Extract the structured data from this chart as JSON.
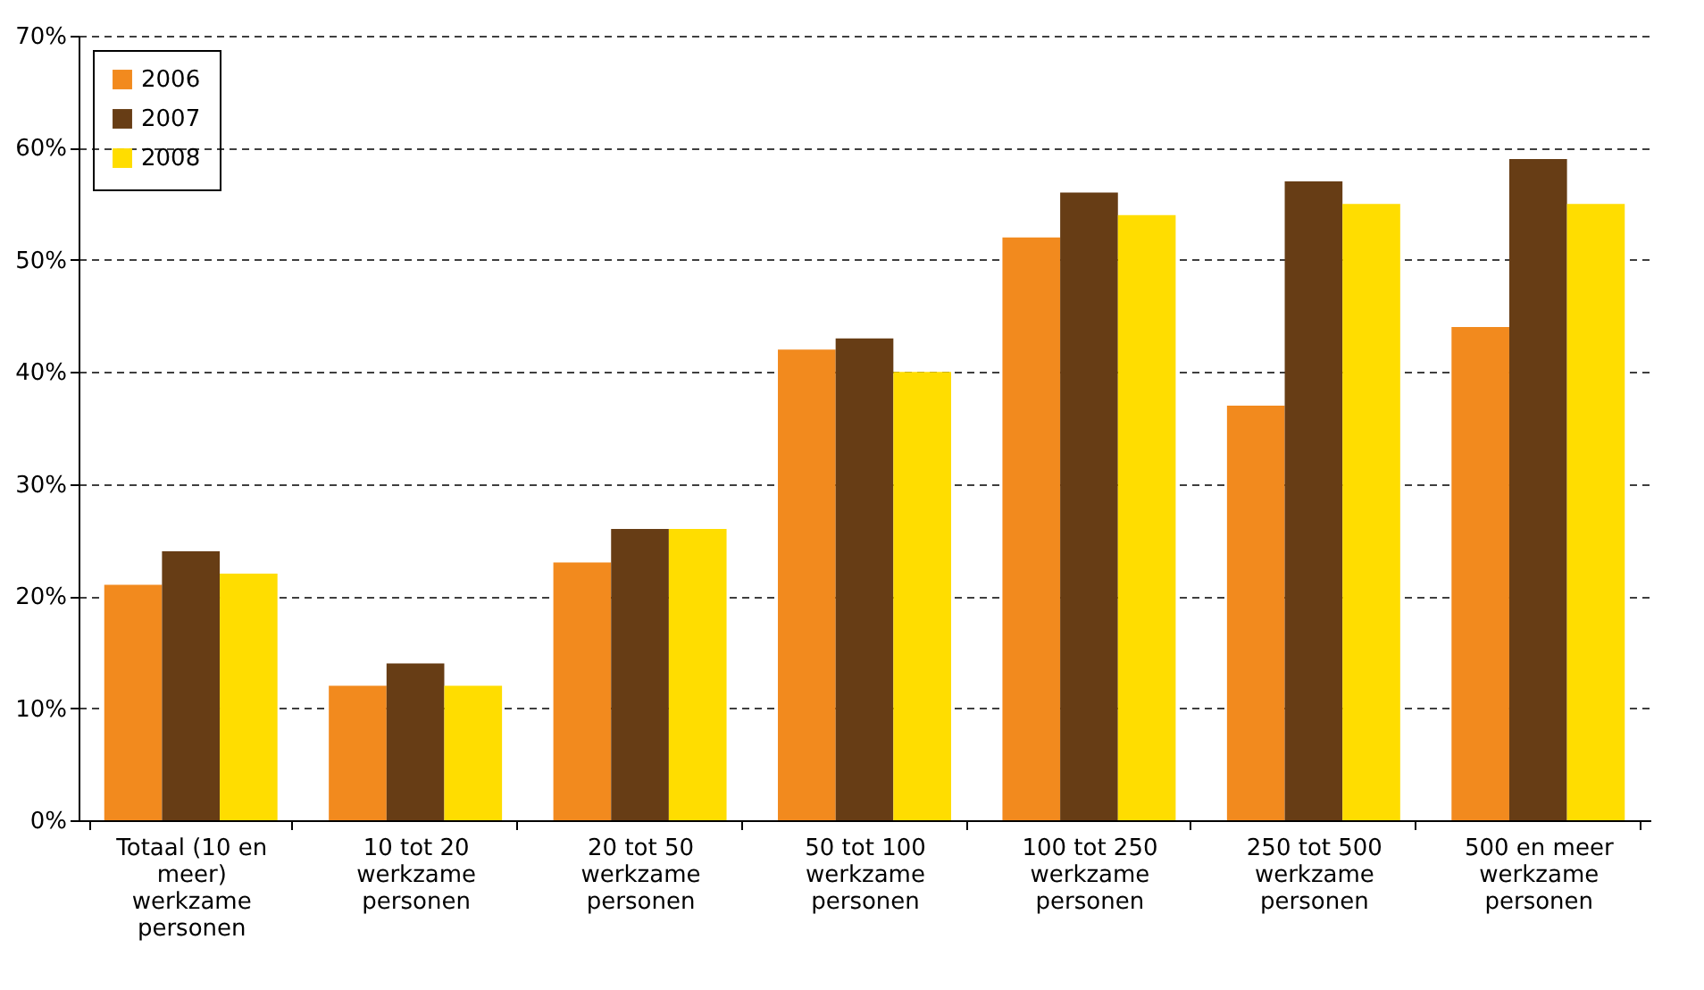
{
  "chart_data": {
    "type": "bar",
    "categories": [
      "Totaal (10 en meer) werkzame personen",
      "10 tot 20 werkzame personen",
      "20 tot 50 werkzame personen",
      "50 tot 100 werkzame personen",
      "100 tot 250 werkzame personen",
      "250 tot 500 werkzame personen",
      "500 en meer werkzame personen"
    ],
    "series": [
      {
        "name": "2006",
        "color": "#f28a1e",
        "values": [
          21,
          12,
          23,
          42,
          52,
          37,
          44
        ]
      },
      {
        "name": "2007",
        "color": "#673d15",
        "values": [
          24,
          14,
          26,
          43,
          56,
          57,
          59
        ]
      },
      {
        "name": "2008",
        "color": "#ffdd00",
        "values": [
          22,
          12,
          26,
          40,
          54,
          55,
          55
        ]
      }
    ],
    "ylim": [
      0,
      70
    ],
    "yticks": [
      {
        "value": 0,
        "label": "0%"
      },
      {
        "value": 10,
        "label": "10%"
      },
      {
        "value": 20,
        "label": "20%"
      },
      {
        "value": 30,
        "label": "30%"
      },
      {
        "value": 40,
        "label": "40%"
      },
      {
        "value": 50,
        "label": "50%"
      },
      {
        "value": 60,
        "label": "60%"
      },
      {
        "value": 70,
        "label": "70%"
      }
    ],
    "grid": "y",
    "legend": "top left"
  }
}
